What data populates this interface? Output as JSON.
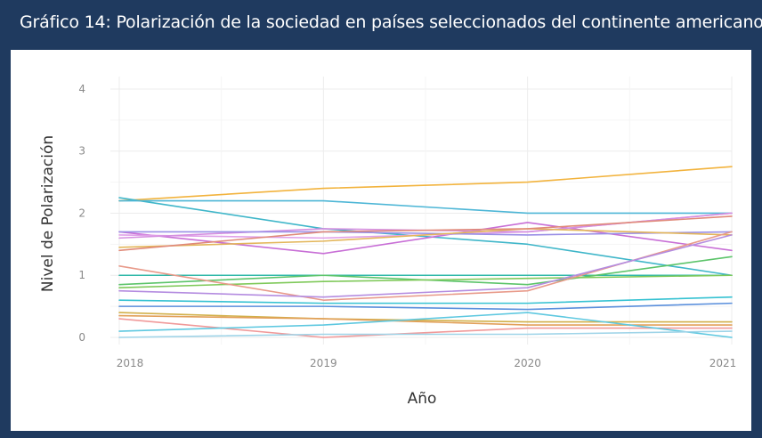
{
  "page": {
    "title": "Gráfico 14: Polarización de la sociedad en países seleccionados del continente americano",
    "colors": {
      "frame": "#1f3a5f",
      "panel": "#ffffff",
      "grid": "#ececec"
    }
  },
  "chart_data": {
    "type": "line",
    "title": "Gráfico 14: Polarización de la sociedad en países seleccionados del continente americano",
    "xlabel": "Año",
    "ylabel": "Nivel de Polarización",
    "x": [
      2018,
      2019,
      2020,
      2021
    ],
    "x_tick_labels": [
      "2018",
      "2019",
      "2020",
      "2021"
    ],
    "y_ticks": [
      0,
      1,
      2,
      3,
      4
    ],
    "y_tick_labels": [
      "0",
      "1",
      "2",
      "3",
      "4"
    ],
    "ylim": [
      0,
      4.2
    ],
    "grid": true,
    "legend": "none",
    "series": [
      {
        "color": "#f2b33d",
        "values": [
          2.2,
          2.4,
          2.5,
          2.75
        ]
      },
      {
        "color": "#3fb6c9",
        "values": [
          2.25,
          1.75,
          1.5,
          1.0
        ]
      },
      {
        "color": "#4db6d6",
        "values": [
          2.2,
          2.2,
          2.0,
          2.0
        ]
      },
      {
        "color": "#c86fd6",
        "values": [
          1.7,
          1.35,
          1.85,
          1.4
        ]
      },
      {
        "color": "#e0a0e8",
        "values": [
          1.65,
          1.6,
          1.7,
          2.0
        ]
      },
      {
        "color": "#d58fe0",
        "values": [
          1.6,
          1.75,
          1.7,
          2.0
        ]
      },
      {
        "color": "#9a8fe6",
        "values": [
          1.7,
          1.7,
          1.65,
          1.7
        ]
      },
      {
        "color": "#e3b65a",
        "values": [
          1.45,
          1.55,
          1.75,
          1.65
        ]
      },
      {
        "color": "#e08a7a",
        "values": [
          1.4,
          1.7,
          1.75,
          1.95
        ]
      },
      {
        "color": "#2fb8a8",
        "values": [
          1.0,
          1.0,
          1.0,
          1.0
        ]
      },
      {
        "color": "#5cc46a",
        "values": [
          0.85,
          1.0,
          0.85,
          1.3
        ]
      },
      {
        "color": "#7fc95a",
        "values": [
          0.8,
          0.9,
          0.95,
          1.0
        ]
      },
      {
        "color": "#e89a8a",
        "values": [
          1.15,
          0.6,
          0.75,
          1.7
        ]
      },
      {
        "color": "#b48ce0",
        "values": [
          0.75,
          0.65,
          0.8,
          1.65
        ]
      },
      {
        "color": "#36c2d2",
        "values": [
          0.6,
          0.55,
          0.55,
          0.65
        ]
      },
      {
        "color": "#5a8fdc",
        "values": [
          0.5,
          0.5,
          0.45,
          0.55
        ]
      },
      {
        "color": "#d2b04a",
        "values": [
          0.4,
          0.3,
          0.25,
          0.25
        ]
      },
      {
        "color": "#e2a05a",
        "values": [
          0.35,
          0.3,
          0.2,
          0.2
        ]
      },
      {
        "color": "#f09a9a",
        "values": [
          0.3,
          0.0,
          0.15,
          0.15
        ]
      },
      {
        "color": "#5ec8e0",
        "values": [
          0.1,
          0.2,
          0.4,
          0.0
        ]
      },
      {
        "color": "#9fd4e8",
        "values": [
          0.0,
          0.05,
          0.05,
          0.1
        ]
      }
    ]
  }
}
